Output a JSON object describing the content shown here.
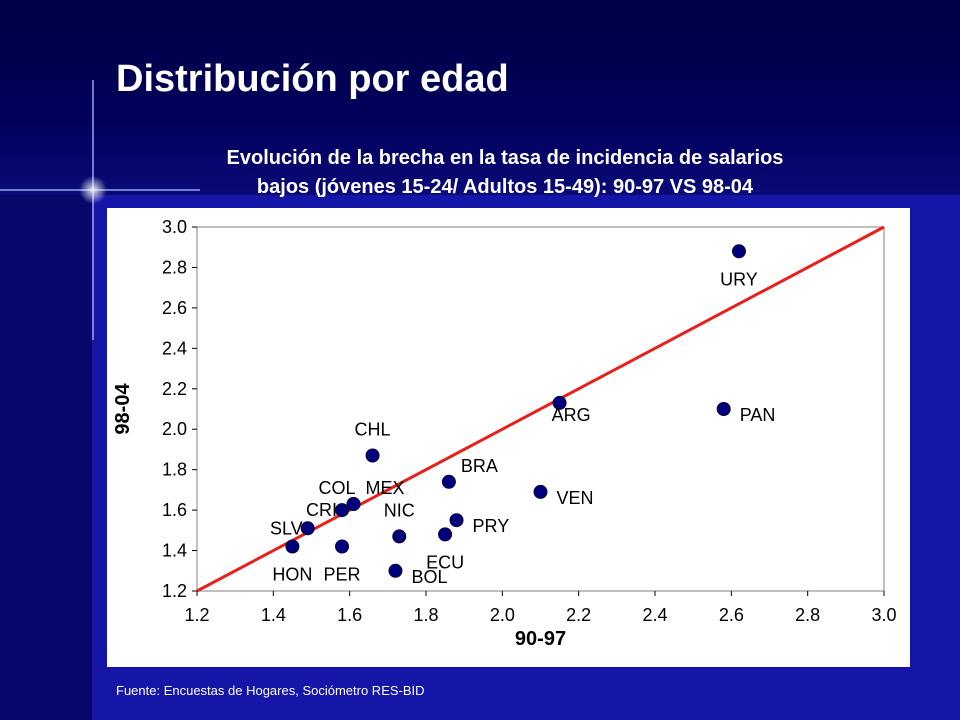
{
  "slide": {
    "title": "Distribución por edad",
    "source": "Fuente: Encuestas de Hogares, Sociómetro RES-BID"
  },
  "colors": {
    "background": "#1515a8",
    "title_text": "#ffffff",
    "point": "#00007a",
    "reference_line": "#e8201c"
  },
  "chart_data": {
    "type": "scatter",
    "title_line1": "Evolución de la brecha en la tasa de incidencia de salarios",
    "title_line2": "bajos (jóvenes 15-24/ Adultos 15-49): 90-97 VS 98-04",
    "xlabel": "90-97",
    "ylabel": "98-04",
    "xlim": [
      1.2,
      3.0
    ],
    "ylim": [
      1.2,
      3.0
    ],
    "xticks": [
      "1.2",
      "1.4",
      "1.6",
      "1.8",
      "2.0",
      "2.2",
      "2.4",
      "2.6",
      "2.8",
      "3.0"
    ],
    "yticks": [
      "1.2",
      "1.4",
      "1.6",
      "1.8",
      "2.0",
      "2.2",
      "2.4",
      "2.6",
      "2.8",
      "3.0"
    ],
    "grid": false,
    "reference_line": {
      "from": [
        1.2,
        1.2
      ],
      "to": [
        3.0,
        3.0
      ]
    },
    "points": [
      {
        "label": "URY",
        "x": 2.62,
        "y": 2.88,
        "label_pos": "below"
      },
      {
        "label": "ARG",
        "x": 2.15,
        "y": 2.13,
        "label_pos": "below-right"
      },
      {
        "label": "PAN",
        "x": 2.58,
        "y": 2.1,
        "label_pos": "right"
      },
      {
        "label": "CHL",
        "x": 1.66,
        "y": 1.87,
        "label_pos": "above"
      },
      {
        "label": "BRA",
        "x": 1.86,
        "y": 1.74,
        "label_pos": "above-right"
      },
      {
        "label": "VEN",
        "x": 2.1,
        "y": 1.69,
        "label_pos": "right"
      },
      {
        "label": "MEX",
        "x": 1.61,
        "y": 1.63,
        "label_pos": "above-right"
      },
      {
        "label": "COL",
        "x": 1.61,
        "y": 1.63,
        "label_pos": "above-left"
      },
      {
        "label": "CRI",
        "x": 1.58,
        "y": 1.6,
        "label_pos": "left"
      },
      {
        "label": "SLV",
        "x": 1.49,
        "y": 1.51,
        "label_pos": "left"
      },
      {
        "label": "HON",
        "x": 1.45,
        "y": 1.42,
        "label_pos": "below"
      },
      {
        "label": "PER",
        "x": 1.58,
        "y": 1.42,
        "label_pos": "below"
      },
      {
        "label": "NIC",
        "x": 1.73,
        "y": 1.47,
        "label_pos": "above"
      },
      {
        "label": "PRY",
        "x": 1.88,
        "y": 1.55,
        "label_pos": "right"
      },
      {
        "label": "ECU",
        "x": 1.85,
        "y": 1.48,
        "label_pos": "below"
      },
      {
        "label": "BOL",
        "x": 1.72,
        "y": 1.3,
        "label_pos": "right"
      }
    ]
  }
}
